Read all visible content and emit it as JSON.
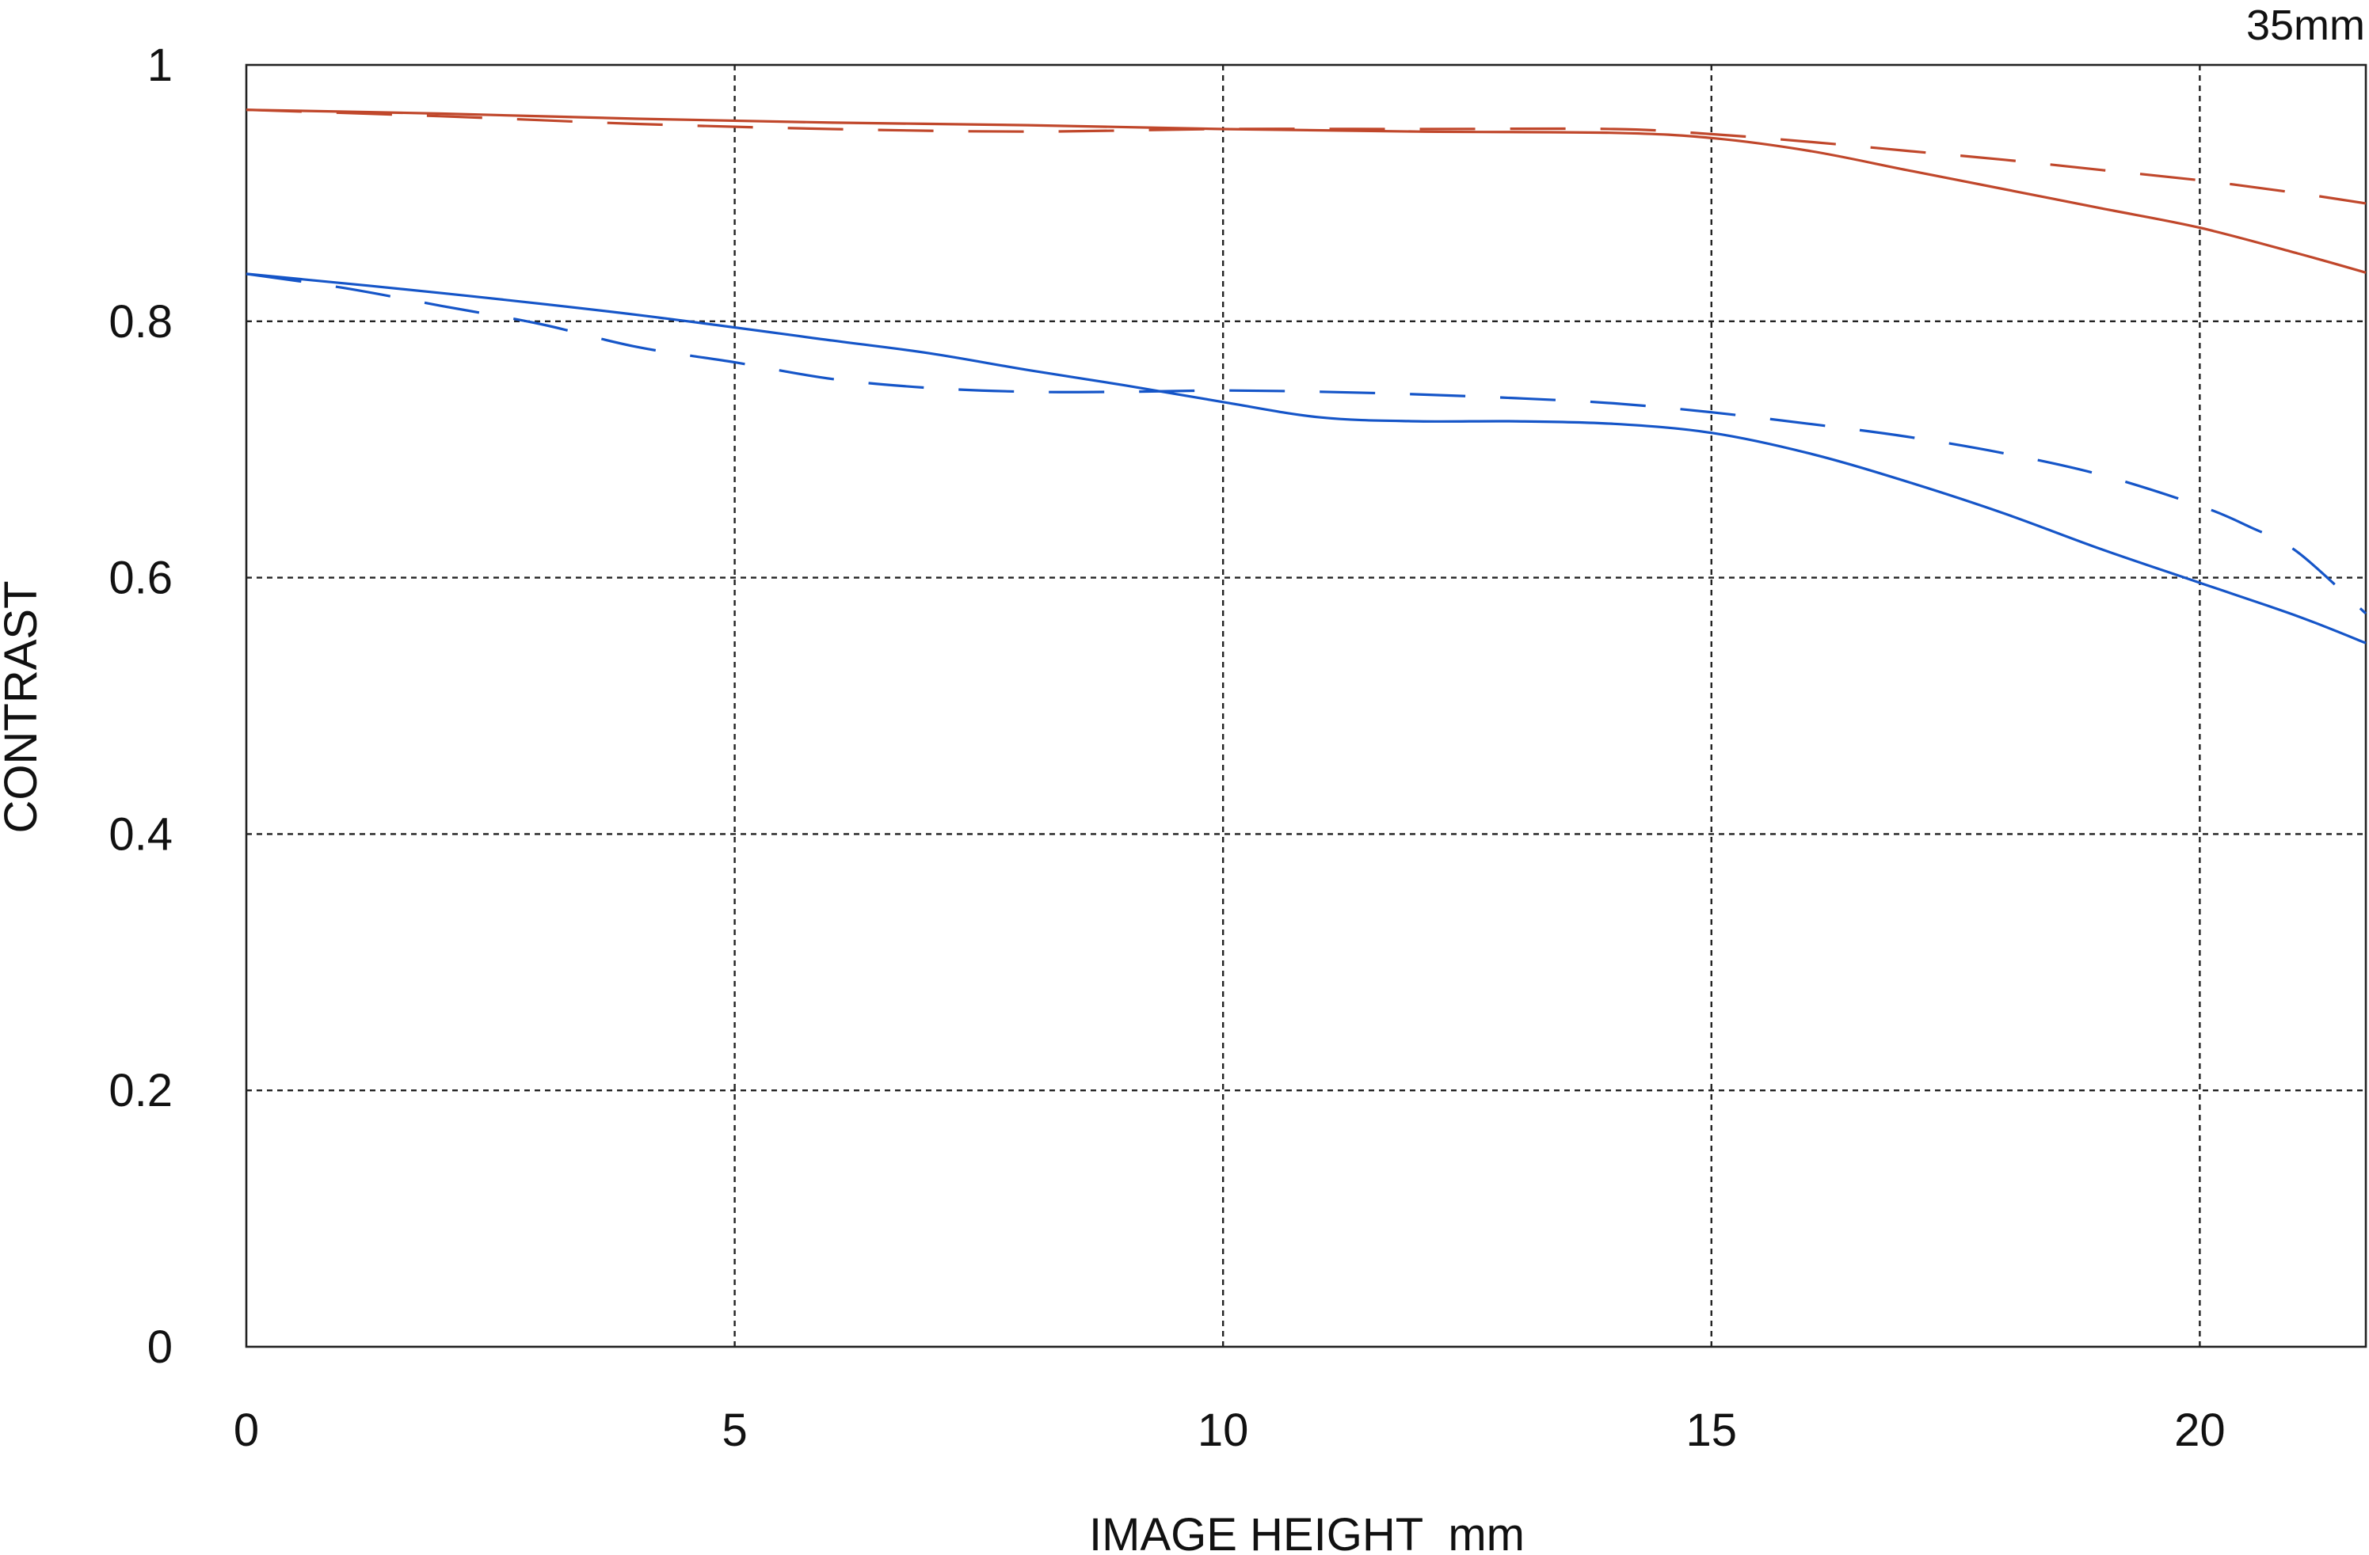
{
  "chart_data": {
    "type": "line",
    "title": "35mm",
    "xlabel": "IMAGE HEIGHT  mm",
    "ylabel": "CONTRAST",
    "xlim": [
      0,
      21.7
    ],
    "ylim": [
      0,
      1
    ],
    "x_ticks": [
      "0",
      "5",
      "10",
      "15",
      "20"
    ],
    "x_tick_values": [
      0,
      5,
      10,
      15,
      20
    ],
    "y_ticks": [
      "0",
      "0.2",
      "0.4",
      "0.6",
      "0.8",
      "1"
    ],
    "y_tick_values": [
      0,
      0.2,
      0.4,
      0.6,
      0.8,
      1.0
    ],
    "grid": true,
    "series": [
      {
        "key": "red-solid",
        "color": "#c0472b",
        "dash": "solid",
        "points": [
          [
            0,
            0.965
          ],
          [
            2,
            0.962
          ],
          [
            4,
            0.958
          ],
          [
            6,
            0.955
          ],
          [
            8,
            0.953
          ],
          [
            10,
            0.95
          ],
          [
            12,
            0.948
          ],
          [
            14,
            0.947
          ],
          [
            15,
            0.943
          ],
          [
            16,
            0.933
          ],
          [
            17,
            0.918
          ],
          [
            18,
            0.903
          ],
          [
            19,
            0.888
          ],
          [
            20,
            0.873
          ],
          [
            21,
            0.853
          ],
          [
            21.7,
            0.838
          ]
        ]
      },
      {
        "key": "red-dashed",
        "color": "#c0472b",
        "dash": "dashed",
        "points": [
          [
            0,
            0.965
          ],
          [
            2,
            0.96
          ],
          [
            4,
            0.954
          ],
          [
            6,
            0.95
          ],
          [
            8,
            0.948
          ],
          [
            10,
            0.95
          ],
          [
            12,
            0.95
          ],
          [
            14,
            0.95
          ],
          [
            15,
            0.946
          ],
          [
            16,
            0.94
          ],
          [
            17,
            0.933
          ],
          [
            18,
            0.926
          ],
          [
            19,
            0.918
          ],
          [
            20,
            0.91
          ],
          [
            21,
            0.9
          ],
          [
            21.7,
            0.892
          ]
        ]
      },
      {
        "key": "blue-solid",
        "color": "#1555c8",
        "dash": "solid",
        "points": [
          [
            0,
            0.837
          ],
          [
            2,
            0.822
          ],
          [
            4,
            0.805
          ],
          [
            6,
            0.785
          ],
          [
            7,
            0.775
          ],
          [
            8,
            0.762
          ],
          [
            9,
            0.75
          ],
          [
            10,
            0.737
          ],
          [
            11,
            0.725
          ],
          [
            12,
            0.722
          ],
          [
            13,
            0.722
          ],
          [
            14,
            0.72
          ],
          [
            15,
            0.713
          ],
          [
            16,
            0.697
          ],
          [
            17,
            0.675
          ],
          [
            18,
            0.65
          ],
          [
            19,
            0.622
          ],
          [
            20,
            0.596
          ],
          [
            21,
            0.57
          ],
          [
            21.7,
            0.549
          ]
        ]
      },
      {
        "key": "blue-dashed",
        "color": "#1555c8",
        "dash": "dashed",
        "points": [
          [
            0,
            0.837
          ],
          [
            1,
            0.826
          ],
          [
            2,
            0.812
          ],
          [
            3,
            0.798
          ],
          [
            4,
            0.78
          ],
          [
            5,
            0.768
          ],
          [
            6,
            0.755
          ],
          [
            7,
            0.748
          ],
          [
            8,
            0.745
          ],
          [
            9,
            0.745
          ],
          [
            10,
            0.746
          ],
          [
            11,
            0.745
          ],
          [
            12,
            0.743
          ],
          [
            13,
            0.74
          ],
          [
            14,
            0.736
          ],
          [
            15,
            0.729
          ],
          [
            16,
            0.72
          ],
          [
            17,
            0.71
          ],
          [
            18,
            0.697
          ],
          [
            19,
            0.68
          ],
          [
            20,
            0.656
          ],
          [
            20.5,
            0.64
          ],
          [
            21,
            0.62
          ],
          [
            21.7,
            0.572
          ]
        ]
      }
    ]
  }
}
